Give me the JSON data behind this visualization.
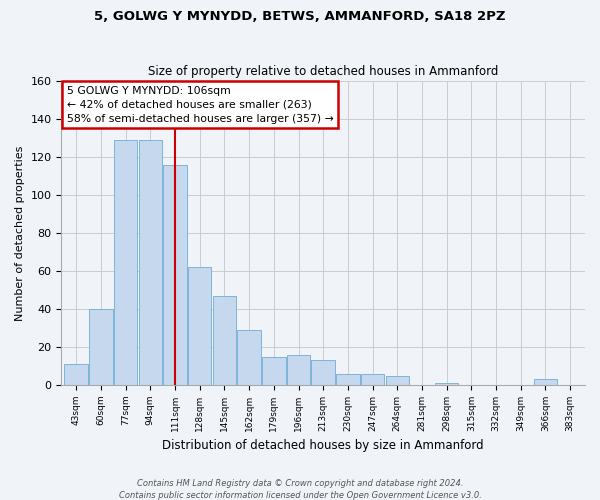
{
  "title": "5, GOLWG Y MYNYDD, BETWS, AMMANFORD, SA18 2PZ",
  "subtitle": "Size of property relative to detached houses in Ammanford",
  "xlabel": "Distribution of detached houses by size in Ammanford",
  "ylabel": "Number of detached properties",
  "categories": [
    "43sqm",
    "60sqm",
    "77sqm",
    "94sqm",
    "111sqm",
    "128sqm",
    "145sqm",
    "162sqm",
    "179sqm",
    "196sqm",
    "213sqm",
    "230sqm",
    "247sqm",
    "264sqm",
    "281sqm",
    "298sqm",
    "315sqm",
    "332sqm",
    "349sqm",
    "366sqm",
    "383sqm"
  ],
  "values": [
    11,
    40,
    129,
    129,
    116,
    62,
    47,
    29,
    15,
    16,
    13,
    6,
    6,
    5,
    0,
    1,
    0,
    0,
    0,
    3,
    0
  ],
  "bar_color": "#c5d8ee",
  "bar_edge_color": "#7db4d8",
  "highlight_line_index": 4,
  "ylim": [
    0,
    160
  ],
  "yticks": [
    0,
    20,
    40,
    60,
    80,
    100,
    120,
    140,
    160
  ],
  "annotation_title": "5 GOLWG Y MYNYDD: 106sqm",
  "annotation_line1": "← 42% of detached houses are smaller (263)",
  "annotation_line2": "58% of semi-detached houses are larger (357) →",
  "annotation_box_color": "#ffffff",
  "annotation_box_edge": "#cc0000",
  "footnote1": "Contains HM Land Registry data © Crown copyright and database right 2024.",
  "footnote2": "Contains public sector information licensed under the Open Government Licence v3.0.",
  "grid_color": "#cccccc",
  "bg_color": "#f0f4f8"
}
